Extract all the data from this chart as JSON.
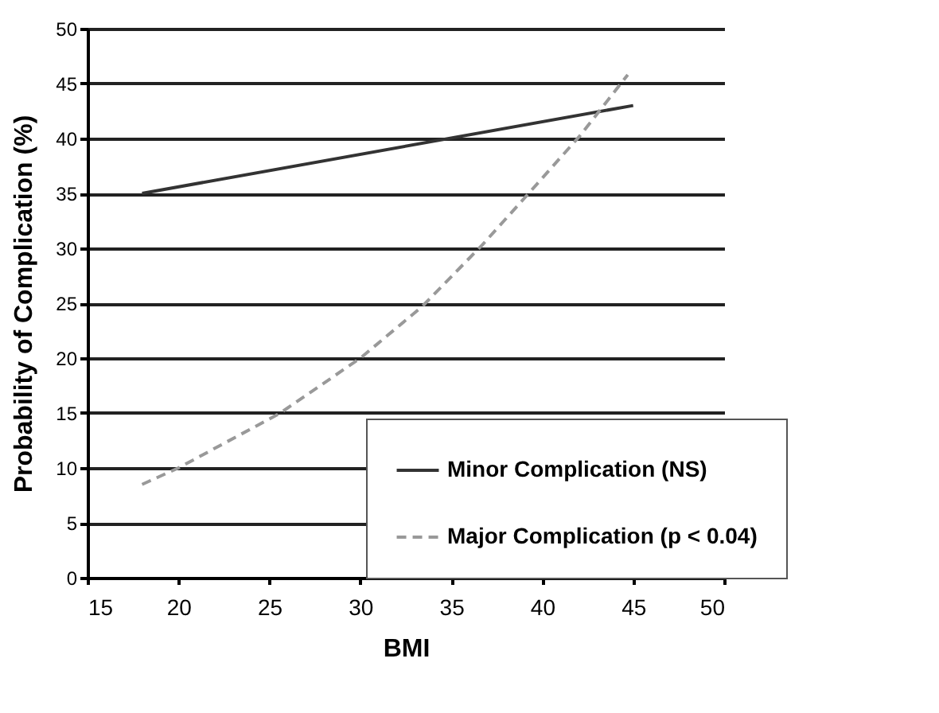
{
  "chart_data": {
    "type": "line",
    "xlabel": "BMI",
    "ylabel": "Probability of Complication (%)",
    "xlim": [
      15,
      50
    ],
    "xticks": [
      15,
      20,
      25,
      30,
      35,
      40,
      45,
      50
    ],
    "ylim": [
      0,
      50
    ],
    "yticks": [
      0,
      5,
      10,
      15,
      20,
      25,
      30,
      35,
      40,
      45,
      50
    ],
    "grid": "y",
    "legend": "bottom right",
    "marker": "none",
    "series": [
      {
        "name": "Minor Complication (NS)",
        "color": "#333333",
        "line_style": "solid",
        "x": [
          18,
          45
        ],
        "values": [
          35,
          43
        ]
      },
      {
        "name": "Major Complication (p < 0.04)",
        "color": "#999999",
        "line_style": "dashed",
        "x": [
          18,
          20,
          25.6,
          30,
          33.4,
          36.7,
          39.2,
          42.1,
          44.7
        ],
        "values": [
          8.5,
          10,
          15,
          20,
          24.7,
          30.3,
          34.9,
          40.3,
          45.8
        ]
      }
    ]
  }
}
